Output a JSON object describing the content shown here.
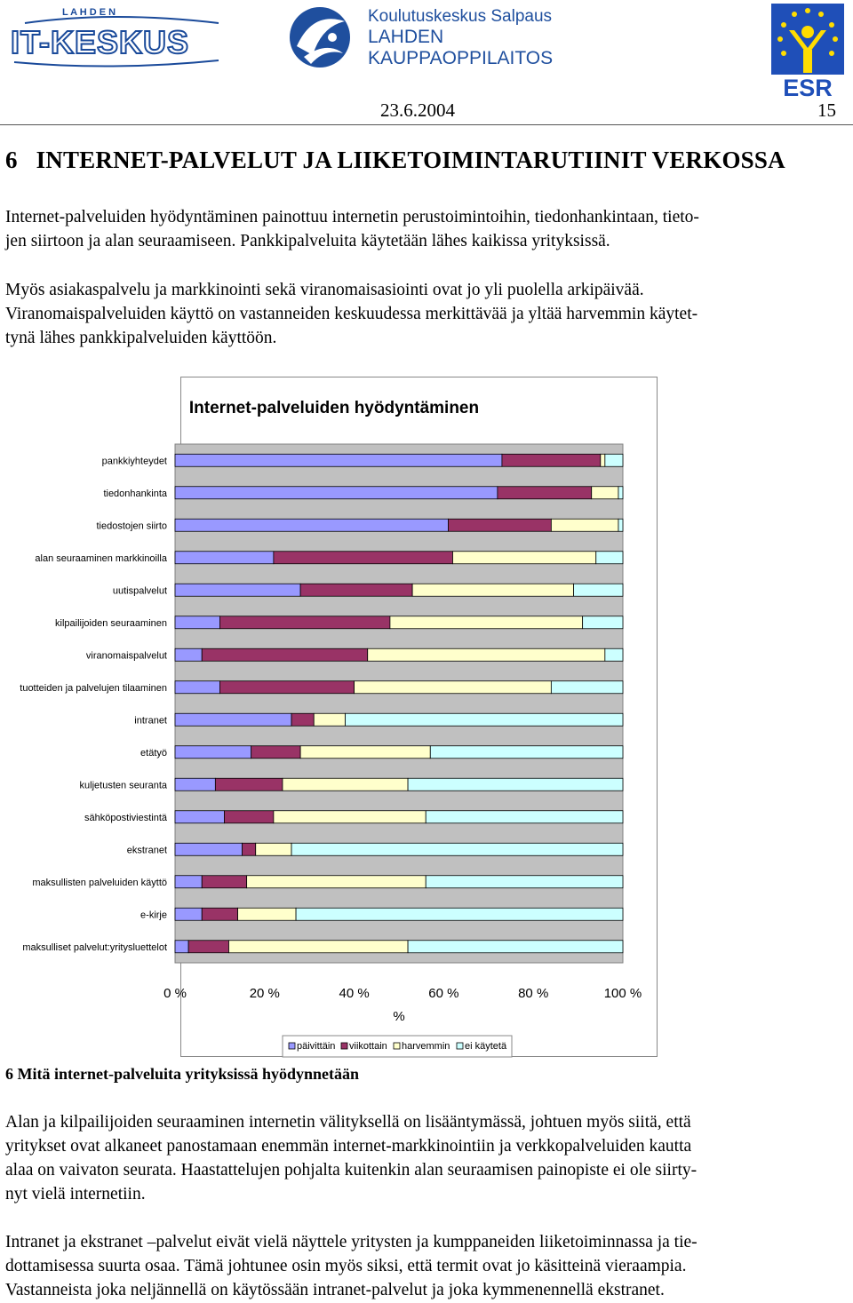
{
  "header": {
    "logo_left_text": "IT-KESKUS",
    "logo_left_small": "L A H D E N",
    "logo_center_line1": "Koulutuskeskus Salpaus",
    "logo_center_line2": "LAHDEN",
    "logo_center_line3": "KAUPPAOPPILAITOS",
    "logo_right_text": "ESR",
    "date": "23.6.2004",
    "page_number": "15"
  },
  "heading": {
    "number": "6",
    "title": "INTERNET-PALVELUT JA LIIKETOIMINTARUTIINIT VERKOSSA"
  },
  "paragraphs_top": [
    "Internet-palveluiden hyödyntäminen painottuu internetin perustoimintoihin, tiedonhankintaan, tieto-",
    "jen siirtoon ja alan seuraamiseen. Pankkipalveluita käytetään lähes kaikissa yrityksissä.",
    "Myös asiakaspalvelu ja markkinointi sekä viranomaisasiointi ovat jo yli puolella arkipäivää.",
    "Viranomaispalveluiden käyttö on vastanneiden keskuudessa merkittävää ja yltää harvemmin käytet-",
    "tynä lähes pankkipalveluiden käyttöön."
  ],
  "colors": {
    "daily": "#9999ff",
    "weekly": "#993366",
    "less_often": "#ffffcc",
    "not_used": "#ccffff"
  },
  "chart_data": {
    "type": "bar",
    "orientation": "horizontal",
    "stacked": "percent",
    "title": "Internet-palveluiden hyödyntäminen",
    "xlabel": "%",
    "ylabel": "",
    "xlim": [
      0,
      100
    ],
    "x_tick_labels": [
      "0 %",
      "20 %",
      "40 %",
      "60 %",
      "80 %",
      "100 %"
    ],
    "legend_position": "bottom",
    "grid": false,
    "categories": [
      "pankkiyhteydet",
      "tiedonhankinta",
      "tiedostojen siirto",
      "alan seuraaminen markkinoilla",
      "uutispalvelut",
      "kilpailijoiden seuraaminen",
      "viranomaispalvelut",
      "tuotteiden ja palvelujen tilaaminen",
      "intranet",
      "etätyö",
      "kuljetusten seuranta",
      "sähköpostiviestintä",
      "ekstranet",
      "maksullisten palveluiden käyttö",
      "e-kirje",
      "maksulliset palvelut:yritysluettelot"
    ],
    "series": [
      {
        "name": "päivittäin",
        "values": [
          73,
          72,
          61,
          22,
          28,
          10,
          6,
          10,
          26,
          17,
          9,
          11,
          15,
          6,
          6,
          3
        ]
      },
      {
        "name": "viikottain",
        "values": [
          22,
          21,
          23,
          40,
          25,
          38,
          37,
          30,
          5,
          11,
          15,
          11,
          3,
          10,
          8,
          9
        ]
      },
      {
        "name": "harvemmin",
        "values": [
          1,
          6,
          15,
          32,
          36,
          43,
          53,
          44,
          7,
          29,
          28,
          34,
          8,
          40,
          13,
          40
        ]
      },
      {
        "name": "ei käytetä",
        "values": [
          4,
          1,
          1,
          6,
          11,
          9,
          4,
          16,
          62,
          43,
          48,
          44,
          74,
          44,
          73,
          48
        ]
      }
    ]
  },
  "figure_caption": "6 Mitä internet-palveluita yrityksissä hyödynnetään",
  "paragraphs_bottom": [
    "Alan ja kilpailijoiden seuraaminen internetin välityksellä on lisääntymässä, johtuen myös siitä, että",
    "yritykset ovat alkaneet panostamaan enemmän internet-markkinointiin ja verkkopalveluiden kautta",
    "alaa on vaivaton seurata. Haastattelujen pohjalta kuitenkin alan seuraamisen painopiste ei ole siirty-",
    "nyt vielä internetiin.",
    "Intranet ja ekstranet –palvelut eivät vielä näyttele yritysten ja kumppaneiden liiketoiminnassa ja tie-",
    "dottamisessa suurta osaa. Tämä johtunee osin myös siksi, että termit ovat jo käsitteinä vieraampia.",
    "Vastanneista joka neljännellä on käytössään intranet-palvelut ja joka kymmenennellä ekstranet."
  ]
}
